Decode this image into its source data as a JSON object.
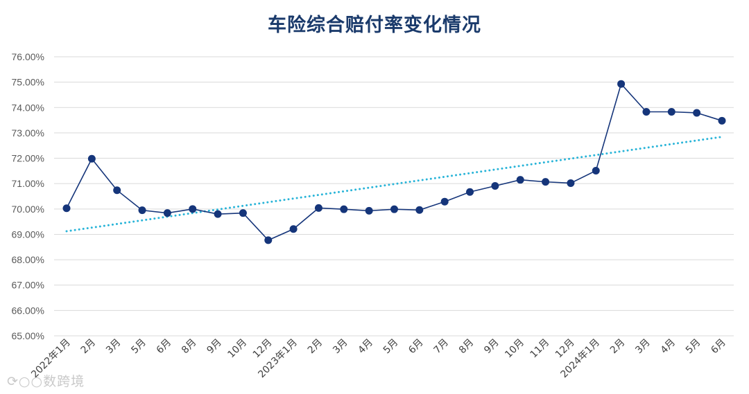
{
  "watermark": "数跨境",
  "chart_data": {
    "type": "line",
    "title": "车险综合赔付率变化情况",
    "xlabel": "",
    "ylabel": "",
    "ylim": [
      65,
      76
    ],
    "y_ticks": [
      "65.00%",
      "66.00%",
      "67.00%",
      "68.00%",
      "69.00%",
      "70.00%",
      "71.00%",
      "72.00%",
      "73.00%",
      "74.00%",
      "75.00%",
      "76.00%"
    ],
    "grid": true,
    "legend": "none",
    "categories": [
      "2022年1月",
      "2月",
      "3月",
      "5月",
      "6月",
      "8月",
      "9月",
      "10月",
      "12月",
      "2023年1月",
      "2月",
      "3月",
      "4月",
      "5月",
      "6月",
      "7月",
      "8月",
      "9月",
      "10月",
      "11月",
      "12月",
      "2024年1月",
      "2月",
      "3月",
      "4月",
      "5月",
      "6月"
    ],
    "series": [
      {
        "values": [
          70.03,
          71.98,
          70.74,
          69.95,
          69.84,
          70.0,
          69.8,
          69.84,
          68.77,
          69.21,
          70.04,
          69.99,
          69.93,
          69.99,
          69.96,
          70.29,
          70.67,
          70.91,
          71.15,
          71.07,
          71.02,
          71.51,
          74.93,
          73.83,
          73.83,
          73.79,
          73.48
        ],
        "color": "#15357a"
      }
    ],
    "trendline": {
      "type": "linear",
      "style": "dotted",
      "color": "#29b4d8"
    }
  }
}
